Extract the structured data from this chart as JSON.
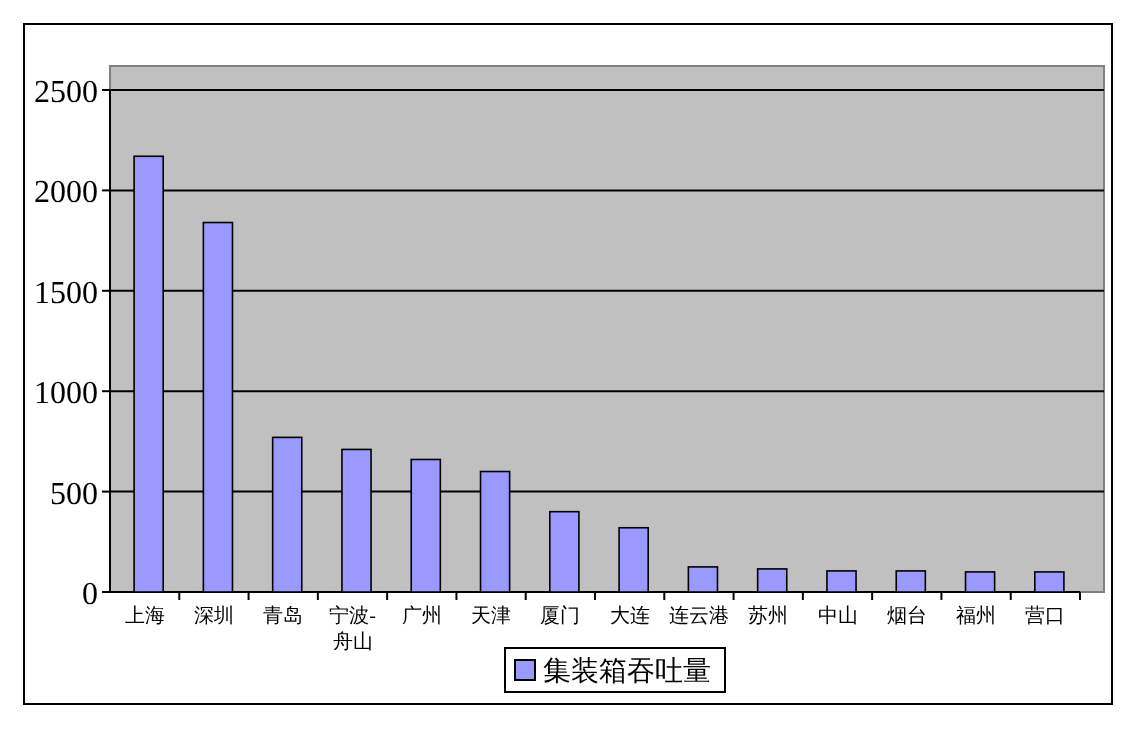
{
  "chart_data": {
    "type": "bar",
    "categories": [
      "上海",
      "深圳",
      "青岛",
      "宁波-舟山",
      "广州",
      "天津",
      "厦门",
      "大连",
      "连云港",
      "苏州",
      "中山",
      "烟台",
      "福州",
      "营口"
    ],
    "series": [
      {
        "name": "集装箱吞吐量",
        "color": "#9999ff",
        "values": [
          2170,
          1840,
          770,
          710,
          660,
          600,
          400,
          320,
          125,
          115,
          105,
          105,
          100,
          100
        ]
      }
    ],
    "ylim": [
      0,
      2500
    ],
    "yticks": [
      0,
      500,
      1000,
      1500,
      2000,
      2500
    ],
    "grid": "y",
    "legend": "bottom"
  }
}
